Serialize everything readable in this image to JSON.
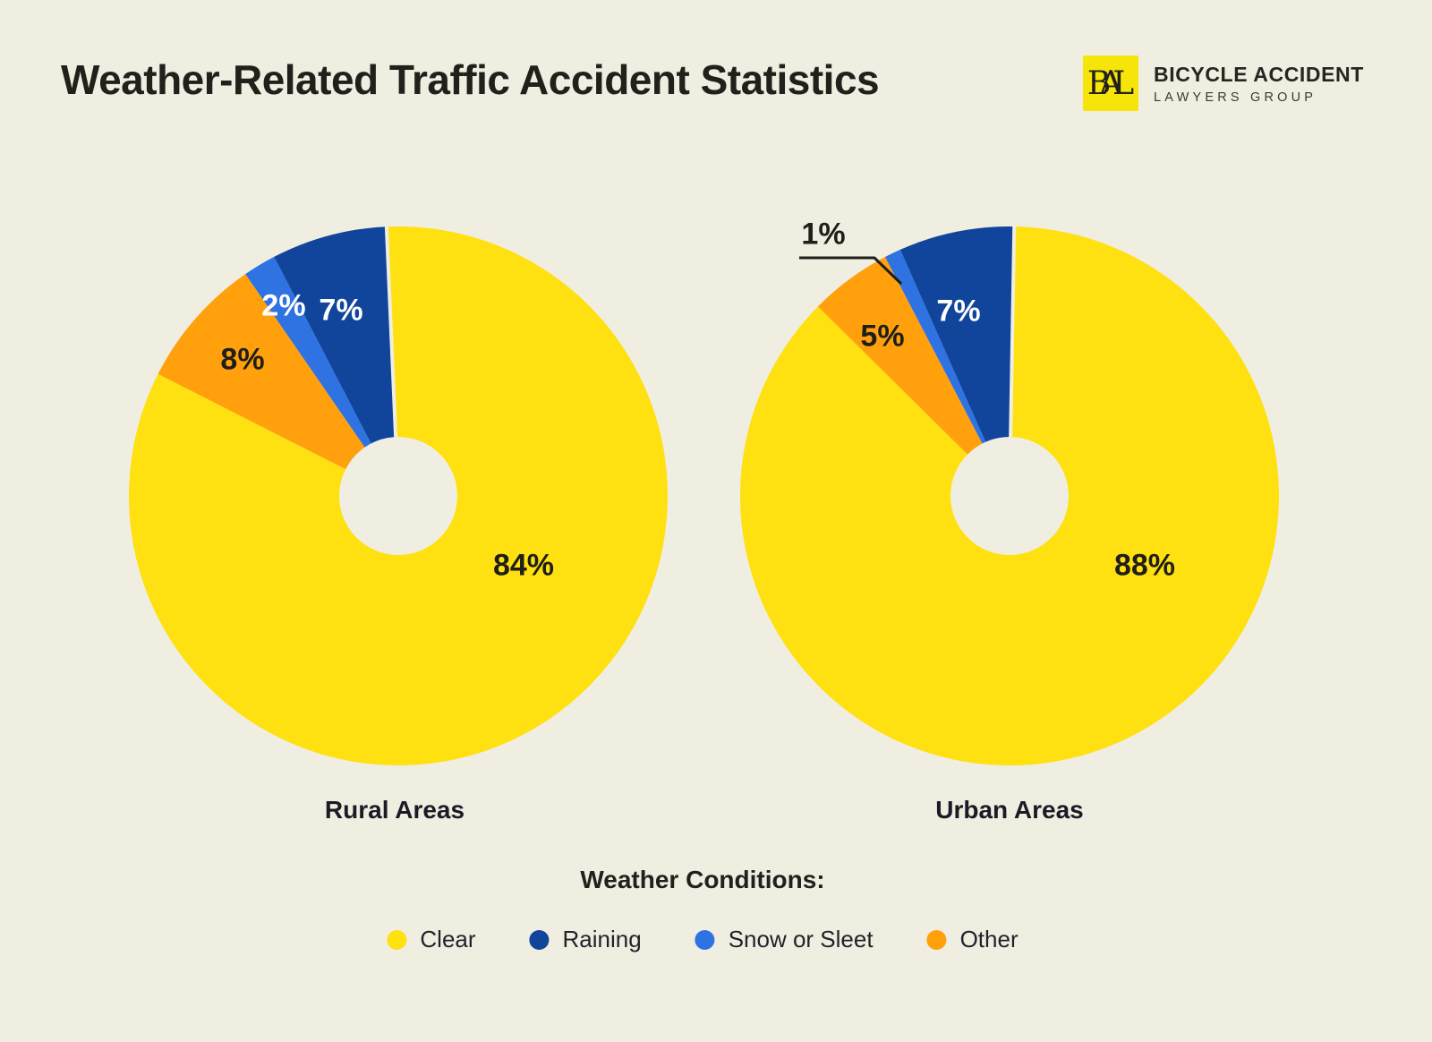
{
  "page": {
    "background": "#F0EEE1"
  },
  "header": {
    "title": "Weather-Related Traffic Accident Statistics",
    "logo": {
      "monogram": [
        "B",
        "A",
        "L"
      ],
      "name_line1": "BICYCLE ACCIDENT",
      "name_line2": "LAWYERS GROUP",
      "square_color": "#F7E408"
    }
  },
  "chart_data": {
    "type": "pie",
    "subtype": "donut",
    "title": "Weather-Related Traffic Accident Statistics",
    "legend_position": "bottom",
    "categories": [
      "Clear",
      "Raining",
      "Snow or Sleet",
      "Other"
    ],
    "colors": {
      "Clear": "#FFE011",
      "Raining": "#10459B",
      "Snow or Sleet": "#2F72E2",
      "Other": "#FFA00C"
    },
    "pies": [
      {
        "label": "Rural Areas",
        "segments": [
          {
            "category": "Clear",
            "value": 84,
            "display": "84%"
          },
          {
            "category": "Other",
            "value": 8,
            "display": "8%"
          },
          {
            "category": "Snow or Sleet",
            "value": 2,
            "display": "2%"
          },
          {
            "category": "Raining",
            "value": 7,
            "display": "7%"
          }
        ]
      },
      {
        "label": "Urban Areas",
        "segments": [
          {
            "category": "Clear",
            "value": 88,
            "display": "88%"
          },
          {
            "category": "Other",
            "value": 5,
            "display": "5%"
          },
          {
            "category": "Snow or Sleet",
            "value": 1,
            "display": "1%"
          },
          {
            "category": "Raining",
            "value": 7,
            "display": "7%"
          }
        ]
      }
    ]
  },
  "legend": {
    "title": "Weather Conditions:",
    "items": [
      {
        "label": "Clear",
        "color": "#FFE011"
      },
      {
        "label": "Raining",
        "color": "#10459B"
      },
      {
        "label": "Snow or Sleet",
        "color": "#2F72E2"
      },
      {
        "label": "Other",
        "color": "#FFA00C"
      }
    ]
  }
}
